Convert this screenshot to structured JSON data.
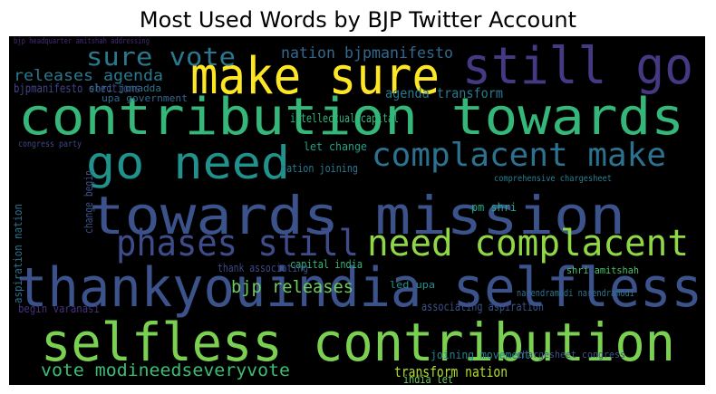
{
  "chart_data": {
    "type": "wordcloud",
    "title": "Most Used Words by BJP Twitter Account",
    "background": "#000000",
    "words": [
      {
        "text": "contribution towards",
        "color": "#35b779"
      },
      {
        "text": "towards mission",
        "color": "#3b528b"
      },
      {
        "text": "thankyouindia selfless",
        "color": "#3b528b"
      },
      {
        "text": "selfless contribution",
        "color": "#7ad151"
      },
      {
        "text": "make sure",
        "color": "#fde725"
      },
      {
        "text": "still go",
        "color": "#443983"
      },
      {
        "text": "go need",
        "color": "#21918c"
      },
      {
        "text": "complacent make",
        "color": "#2c728e"
      },
      {
        "text": "phases still",
        "color": "#3e4c8a"
      },
      {
        "text": "need complacent",
        "color": "#8fd744"
      },
      {
        "text": "sure vote",
        "color": "#2a788e"
      },
      {
        "text": "nation bjpmanifesto",
        "color": "#31688e"
      },
      {
        "text": "releases agenda",
        "color": "#2a788e"
      },
      {
        "text": "bjpmanifesto elections",
        "color": "#414487"
      },
      {
        "text": "agenda transform",
        "color": "#2a788e"
      },
      {
        "text": "intellectual capital",
        "color": "#2fb47c"
      },
      {
        "text": "bjp releases",
        "color": "#6ccd5a"
      },
      {
        "text": "vote modineedseveryvote",
        "color": "#3dbc74"
      },
      {
        "text": "transform nation",
        "color": "#b5de2b"
      },
      {
        "text": "joining movement",
        "color": "#26828e"
      },
      {
        "text": "begin varanasi",
        "color": "#46327e"
      },
      {
        "text": "capital india",
        "color": "#35b779"
      },
      {
        "text": "associating aspiration",
        "color": "#3b528b"
      },
      {
        "text": "thank associating",
        "color": "#3e4989"
      },
      {
        "text": "nation joining",
        "color": "#2a788e"
      },
      {
        "text": "let change",
        "color": "#1fa187"
      },
      {
        "text": "upa government",
        "color": "#31688e"
      },
      {
        "text": "shri jonadda",
        "color": "#2c728e"
      },
      {
        "text": "pm shri",
        "color": "#22a884"
      },
      {
        "text": "comprehensive chargesheet",
        "color": "#277f8e"
      },
      {
        "text": "narendramodi narendramodi",
        "color": "#2c728e"
      },
      {
        "text": "shri amitshah",
        "color": "#4ac16d"
      },
      {
        "text": "chargesheet congress",
        "color": "#3b528b"
      },
      {
        "text": "aspiration nation",
        "color": "#2c728e"
      },
      {
        "text": "change begin",
        "color": "#3b528b"
      },
      {
        "text": "india let",
        "color": "#6ccd5a"
      },
      {
        "text": "led upa",
        "color": "#21918c"
      },
      {
        "text": "congress party",
        "color": "#3e4989"
      },
      {
        "text": "bjp headquarter amitshah addressing",
        "color": "#482878"
      }
    ]
  }
}
